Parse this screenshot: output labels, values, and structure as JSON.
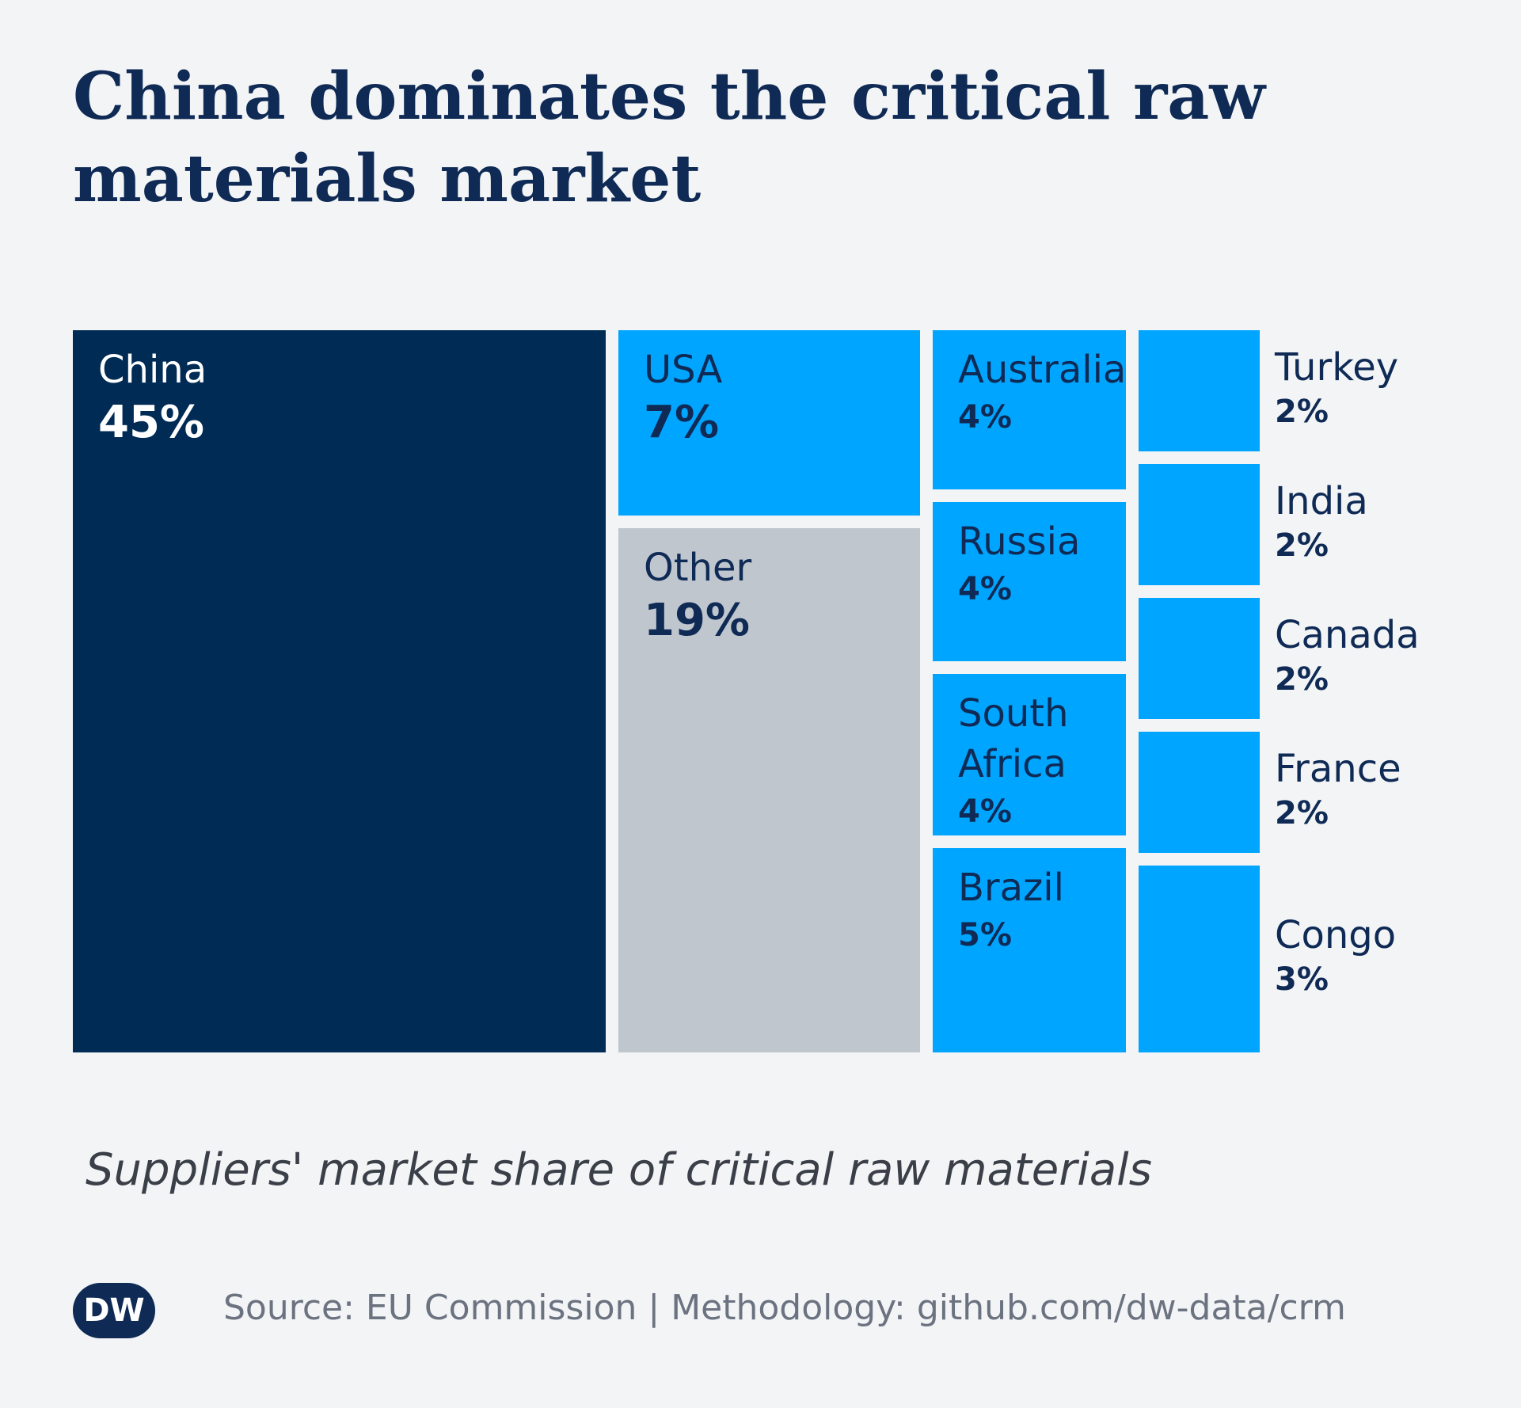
{
  "title_lines": [
    "China dominates the critical raw",
    "materials market"
  ],
  "subtitle": "Suppliers' market share of critical raw materials",
  "source": "Source: EU Commission | Methodology: github.com/dw-data/crm",
  "logo_text": "DW",
  "colors": {
    "background": "#f3f4f6",
    "dark_navy": "#002b55",
    "bright_blue": "#00a5ff",
    "gray": "#bfc6ce",
    "title": "#0e2a55",
    "text_dark": "#0e2a55",
    "text_white": "#ffffff"
  },
  "chart_data": {
    "type": "treemap",
    "title": "China dominates the critical raw materials market",
    "subtitle": "Suppliers' market share of critical raw materials",
    "unit": "%",
    "items": [
      {
        "name": "China",
        "value": 45,
        "label": "45%"
      },
      {
        "name": "USA",
        "value": 7,
        "label": "7%"
      },
      {
        "name": "Other",
        "value": 19,
        "label": "19%"
      },
      {
        "name": "Australia",
        "value": 4,
        "label": "4%"
      },
      {
        "name": "Russia",
        "value": 4,
        "label": "4%"
      },
      {
        "name": "South Africa",
        "value": 4,
        "label": "4%"
      },
      {
        "name": "Brazil",
        "value": 5,
        "label": "5%"
      },
      {
        "name": "Turkey",
        "value": 2,
        "label": "2%"
      },
      {
        "name": "India",
        "value": 2,
        "label": "2%"
      },
      {
        "name": "Canada",
        "value": 2,
        "label": "2%"
      },
      {
        "name": "France",
        "value": 2,
        "label": "2%"
      },
      {
        "name": "Congo",
        "value": 3,
        "label": "3%"
      }
    ]
  }
}
